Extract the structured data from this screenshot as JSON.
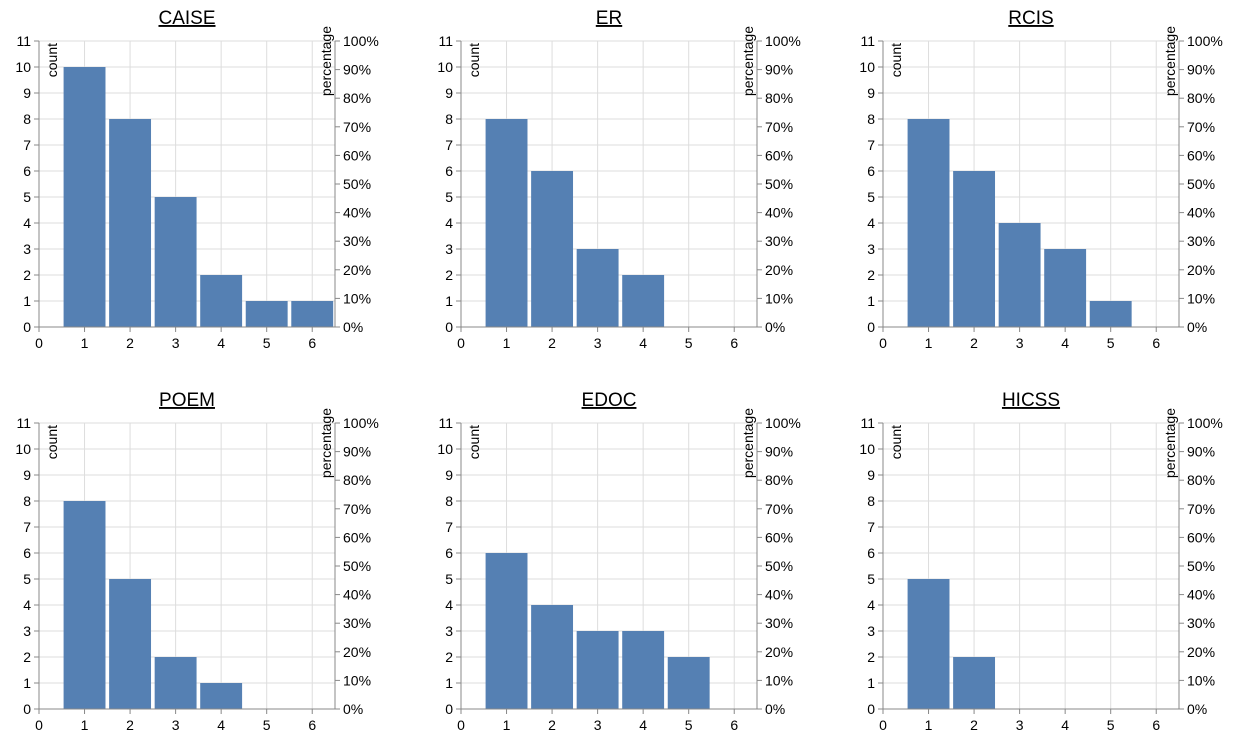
{
  "colors": {
    "bar": "#5580b3",
    "grid": "#dddddd",
    "axis": "#888888",
    "text": "#000000"
  },
  "chart_data": [
    {
      "type": "bar",
      "title": "CAISE",
      "ylabel": "count",
      "y2label": "percentage",
      "x": [
        1,
        2,
        3,
        4,
        5,
        6
      ],
      "values": [
        10,
        8,
        5,
        2,
        1,
        1
      ],
      "xlim": [
        0,
        6.5
      ],
      "xticks": [
        0,
        1,
        2,
        3,
        4,
        5,
        6
      ],
      "ylim": [
        0,
        11
      ],
      "yticks": [
        0,
        1,
        2,
        3,
        4,
        5,
        6,
        7,
        8,
        9,
        10,
        11
      ],
      "y2lim": [
        0,
        100
      ],
      "y2ticks": [
        "0%",
        "10%",
        "20%",
        "30%",
        "40%",
        "50%",
        "60%",
        "70%",
        "80%",
        "90%",
        "100%"
      ],
      "grid": true
    },
    {
      "type": "bar",
      "title": "ER",
      "ylabel": "count",
      "y2label": "percentage",
      "x": [
        1,
        2,
        3,
        4
      ],
      "values": [
        8,
        6,
        3,
        2
      ],
      "xlim": [
        0,
        6.5
      ],
      "xticks": [
        0,
        1,
        2,
        3,
        4,
        5,
        6
      ],
      "ylim": [
        0,
        11
      ],
      "yticks": [
        0,
        1,
        2,
        3,
        4,
        5,
        6,
        7,
        8,
        9,
        10,
        11
      ],
      "y2lim": [
        0,
        100
      ],
      "y2ticks": [
        "0%",
        "10%",
        "20%",
        "30%",
        "40%",
        "50%",
        "60%",
        "70%",
        "80%",
        "90%",
        "100%"
      ],
      "grid": true
    },
    {
      "type": "bar",
      "title": "RCIS",
      "ylabel": "count",
      "y2label": "percentage",
      "x": [
        1,
        2,
        3,
        4,
        5
      ],
      "values": [
        8,
        6,
        4,
        3,
        1
      ],
      "xlim": [
        0,
        6.5
      ],
      "xticks": [
        0,
        1,
        2,
        3,
        4,
        5,
        6
      ],
      "ylim": [
        0,
        11
      ],
      "yticks": [
        0,
        1,
        2,
        3,
        4,
        5,
        6,
        7,
        8,
        9,
        10,
        11
      ],
      "y2lim": [
        0,
        100
      ],
      "y2ticks": [
        "0%",
        "10%",
        "20%",
        "30%",
        "40%",
        "50%",
        "60%",
        "70%",
        "80%",
        "90%",
        "100%"
      ],
      "grid": true
    },
    {
      "type": "bar",
      "title": "POEM",
      "ylabel": "count",
      "y2label": "percentage",
      "x": [
        1,
        2,
        3,
        4
      ],
      "values": [
        8,
        5,
        2,
        1
      ],
      "xlim": [
        0,
        6.5
      ],
      "xticks": [
        0,
        1,
        2,
        3,
        4,
        5,
        6
      ],
      "ylim": [
        0,
        11
      ],
      "yticks": [
        0,
        1,
        2,
        3,
        4,
        5,
        6,
        7,
        8,
        9,
        10,
        11
      ],
      "y2lim": [
        0,
        100
      ],
      "y2ticks": [
        "0%",
        "10%",
        "20%",
        "30%",
        "40%",
        "50%",
        "60%",
        "70%",
        "80%",
        "90%",
        "100%"
      ],
      "grid": true
    },
    {
      "type": "bar",
      "title": "EDOC",
      "ylabel": "count",
      "y2label": "percentage",
      "x": [
        1,
        2,
        3,
        4,
        5
      ],
      "values": [
        6,
        4,
        3,
        3,
        2
      ],
      "xlim": [
        0,
        6.5
      ],
      "xticks": [
        0,
        1,
        2,
        3,
        4,
        5,
        6
      ],
      "ylim": [
        0,
        11
      ],
      "yticks": [
        0,
        1,
        2,
        3,
        4,
        5,
        6,
        7,
        8,
        9,
        10,
        11
      ],
      "y2lim": [
        0,
        100
      ],
      "y2ticks": [
        "0%",
        "10%",
        "20%",
        "30%",
        "40%",
        "50%",
        "60%",
        "70%",
        "80%",
        "90%",
        "100%"
      ],
      "grid": true
    },
    {
      "type": "bar",
      "title": "HICSS",
      "ylabel": "count",
      "y2label": "percentage",
      "x": [
        1,
        2
      ],
      "values": [
        5,
        2
      ],
      "xlim": [
        0,
        6.5
      ],
      "xticks": [
        0,
        1,
        2,
        3,
        4,
        5,
        6
      ],
      "ylim": [
        0,
        11
      ],
      "yticks": [
        0,
        1,
        2,
        3,
        4,
        5,
        6,
        7,
        8,
        9,
        10,
        11
      ],
      "y2lim": [
        0,
        100
      ],
      "y2ticks": [
        "0%",
        "10%",
        "20%",
        "30%",
        "40%",
        "50%",
        "60%",
        "70%",
        "80%",
        "90%",
        "100%"
      ],
      "grid": true
    }
  ]
}
